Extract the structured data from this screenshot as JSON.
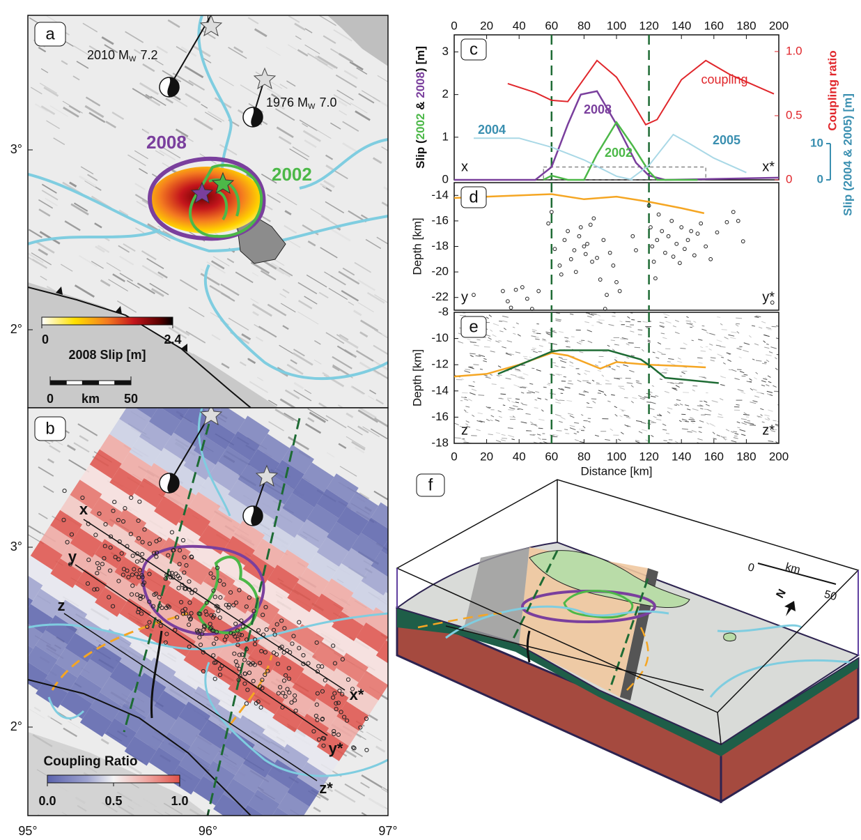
{
  "panel_a": {
    "label": "a",
    "events": [
      {
        "label": "2010 M",
        "subscript": "W",
        "magnitude": "7.2"
      },
      {
        "label": "1976 M",
        "subscript": "W",
        "magnitude": "7.0"
      }
    ],
    "slip_labels": [
      "2008",
      "2002"
    ],
    "colorbar": {
      "title": "2008 Slip [m]",
      "ticks": [
        0,
        2.4
      ]
    },
    "scale": {
      "ticks": [
        0,
        50
      ],
      "unit": "km"
    },
    "lat_ticks": [
      {
        "value": 3,
        "label": "3°"
      },
      {
        "value": 2,
        "label": "2°"
      }
    ]
  },
  "panel_b": {
    "label": "b",
    "profiles": [
      [
        "x",
        "x*"
      ],
      [
        "y",
        "y*"
      ],
      [
        "z",
        "z*"
      ]
    ],
    "colorbar": {
      "title": "Coupling Ratio",
      "ticks": [
        {
          "value": 0,
          "label": "0.0"
        },
        {
          "value": 0.5,
          "label": "0.5"
        },
        {
          "value": 1,
          "label": "1.0"
        }
      ]
    },
    "lat_ticks": [
      {
        "value": 3,
        "label": "3°"
      },
      {
        "value": 2,
        "label": "2°"
      }
    ]
  },
  "lon_ticks": [
    {
      "value": 95,
      "label": "95°"
    },
    {
      "value": 96,
      "label": "96°"
    },
    {
      "value": 97,
      "label": "97°"
    }
  ],
  "chart_data": [
    {
      "type": "line",
      "label": "c",
      "endpoints": [
        "x",
        "x*"
      ],
      "vlines": [
        60,
        120
      ],
      "xlim": [
        0,
        200
      ],
      "xticks": [
        0,
        20,
        40,
        60,
        80,
        100,
        120,
        140,
        160,
        180,
        200
      ],
      "ylim": [
        0,
        3.4
      ],
      "yticks": [
        0,
        1,
        2,
        3
      ],
      "ylabel": [
        {
          "text": "Slip (",
          "color": "#111111"
        },
        {
          "text": "2002",
          "color": "#4cb848"
        },
        {
          "text": " & ",
          "color": "#111111"
        },
        {
          "text": "2008",
          "color": "#7a3f9d"
        },
        {
          "text": ") [m]",
          "color": "#111111"
        }
      ],
      "y2lim": [
        0,
        1.13
      ],
      "y2ticks": [
        0,
        0.5,
        {
          "value": 1,
          "label": "1.0"
        }
      ],
      "y2label": "Coupling ratio",
      "y2color": "#e0262b",
      "y3lim": [
        0,
        40
      ],
      "y3ticks": [
        0,
        10
      ],
      "y3label": "Slip (2004 & 2005) [m]",
      "y3color": "#3a8fb0",
      "series": [
        {
          "name": "coupling",
          "color": "#e0262b",
          "label_color": "#e0262b",
          "axis": "y2",
          "x": [
            33,
            50,
            60,
            70,
            88,
            100,
            110,
            118,
            125,
            140,
            155,
            170,
            197
          ],
          "values": [
            0.75,
            0.68,
            0.62,
            0.61,
            0.93,
            0.8,
            0.6,
            0.43,
            0.47,
            0.78,
            0.93,
            0.82,
            0.67
          ]
        },
        {
          "name": "2008",
          "color": "#7a3f9d",
          "label_color": "#7a3f9d",
          "x": [
            0,
            50,
            60,
            70,
            78,
            88,
            100,
            112,
            120,
            130,
            200
          ],
          "values": [
            0,
            0,
            0.3,
            1.3,
            2.0,
            2.08,
            1.3,
            0.4,
            0.1,
            0,
            0.05
          ]
        },
        {
          "name": "2002",
          "color": "#4cb848",
          "label_color": "#4cb848",
          "x": [
            55,
            60,
            70,
            80,
            88,
            100,
            110,
            120,
            125,
            150
          ],
          "values": [
            0,
            0.1,
            0,
            0,
            0.6,
            1.35,
            0.8,
            0.2,
            0,
            0
          ]
        },
        {
          "name": "2004",
          "color": "#a9d8e6",
          "label_color": "#3a8fb0",
          "axis": "y3",
          "x": [
            12,
            40,
            60,
            80,
            100,
            110
          ],
          "values": [
            11.5,
            11.5,
            9,
            5.5,
            1,
            0
          ]
        },
        {
          "name": "2005",
          "color": "#a9d8e6",
          "label_color": "#3a8fb0",
          "axis": "y3",
          "x": [
            108,
            120,
            135,
            145,
            160,
            180
          ],
          "values": [
            0,
            4,
            12.5,
            10,
            6,
            2
          ]
        }
      ]
    },
    {
      "type": "scatter",
      "label": "d",
      "endpoints": [
        "y",
        "y*"
      ],
      "vlines": [
        60,
        120
      ],
      "xlim": [
        0,
        200
      ],
      "ylim": [
        -23,
        -13
      ],
      "yticks": [
        -14,
        -16,
        -18,
        -20,
        -22
      ],
      "ylabel": "Depth [km]",
      "line": {
        "color": "#f5a623",
        "x": [
          0,
          20,
          60,
          80,
          100,
          120,
          140,
          154
        ],
        "values": [
          -14.2,
          -14.1,
          -13.9,
          -14.3,
          -14.1,
          -14.5,
          -15,
          -15.4
        ]
      },
      "points": {
        "x": [
          12,
          30,
          33,
          35,
          38,
          42,
          45,
          48,
          52,
          58,
          60,
          62,
          65,
          66,
          68,
          70,
          72,
          74,
          75,
          77,
          78,
          80,
          81,
          82,
          84,
          85,
          86,
          88,
          90,
          92,
          93,
          94,
          96,
          98,
          100,
          102,
          110,
          112,
          120,
          121,
          122,
          123,
          124,
          125,
          126,
          128,
          130,
          132,
          134,
          135,
          137,
          139,
          140,
          142,
          144,
          146,
          148,
          150,
          152,
          155,
          158,
          162,
          168,
          172,
          175,
          178,
          196
        ],
        "values": [
          -21.8,
          -21.5,
          -22.3,
          -22.8,
          -21.4,
          -21.2,
          -22.1,
          -22.9,
          -21.5,
          -16.2,
          -15.3,
          -18.2,
          -19.5,
          -20.2,
          -17.5,
          -16.8,
          -19,
          -18.3,
          -20,
          -17.2,
          -16.5,
          -18,
          -18.6,
          -17.8,
          -16.3,
          -19.2,
          -15.8,
          -18.9,
          -20.6,
          -17.5,
          -22.9,
          -21.8,
          -18.5,
          -19.5,
          -20.8,
          -21.5,
          -17.2,
          -18.3,
          -14.8,
          -16.5,
          -18,
          -19.2,
          -20.5,
          -17.5,
          -15.5,
          -16.8,
          -18.5,
          -17.2,
          -16,
          -18.8,
          -17.8,
          -19.3,
          -16.5,
          -18.2,
          -17.5,
          -16.8,
          -18.7,
          -17,
          -16.2,
          -18,
          -19,
          -16.9,
          -16.1,
          -15.3,
          -16,
          -17.6,
          -22.4
        ]
      }
    },
    {
      "type": "line",
      "label": "e",
      "endpoints": [
        "z",
        "z*"
      ],
      "vlines": [
        60,
        120
      ],
      "xlim": [
        0,
        200
      ],
      "xticks": [
        0,
        20,
        40,
        60,
        80,
        100,
        120,
        140,
        160,
        180,
        200
      ],
      "xlabel": "Distance [km]",
      "ylim": [
        -18,
        -8
      ],
      "yticks": [
        -8,
        -10,
        -12,
        -14,
        -16,
        -18
      ],
      "ylabel": "Depth [km]",
      "series": [
        {
          "color": "#f5a623",
          "x": [
            0,
            20,
            40,
            60,
            70,
            90,
            100,
            120,
            140,
            155
          ],
          "values": [
            -12.9,
            -12.7,
            -12,
            -11.1,
            -11.3,
            -12.3,
            -11.8,
            -12,
            -12.1,
            -12.2
          ]
        },
        {
          "color": "#1e6b34",
          "x": [
            27,
            60,
            65,
            95,
            115,
            122,
            130,
            163
          ],
          "values": [
            -12.7,
            -11,
            -10.9,
            -10.9,
            -11.6,
            -12.2,
            -13,
            -13.4
          ]
        }
      ]
    }
  ],
  "panel_f": {
    "label": "f",
    "scale": {
      "ticks": [
        0,
        50
      ],
      "unit": "km"
    },
    "north": "N"
  }
}
